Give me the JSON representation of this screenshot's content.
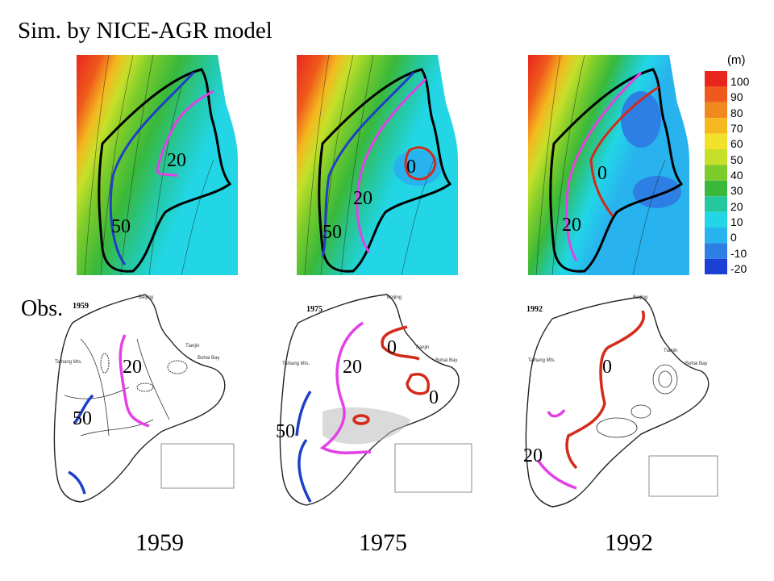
{
  "title": "Sim. by NICE-AGR model",
  "obs_label": "Obs.",
  "colorbar": {
    "unit": "(m)",
    "ticks": [
      "100",
      "90",
      "80",
      "70",
      "60",
      "50",
      "40",
      "30",
      "20",
      "10",
      "0",
      "-10",
      "-20"
    ],
    "colors": [
      "#e8261e",
      "#ef5a1c",
      "#f08a1e",
      "#f5b81f",
      "#f2e12a",
      "#c6e02a",
      "#7ccc2b",
      "#39b93a",
      "#25c79e",
      "#22d6e6",
      "#28b3ef",
      "#2d7fe3",
      "#1c40d6"
    ]
  },
  "sim_panels": [
    {
      "labels": [
        "20",
        "50"
      ]
    },
    {
      "labels": [
        "0",
        "20",
        "50"
      ]
    },
    {
      "labels": [
        "0",
        "20"
      ]
    }
  ],
  "obs_panels": [
    {
      "year_tag": "1959",
      "labels": [
        "20",
        "50"
      ],
      "place_names": [
        "Beijing",
        "Tianjin",
        "Bohai Bay",
        "Taihang Mts."
      ]
    },
    {
      "year_tag": "1975",
      "labels": [
        "0",
        "20",
        "0",
        "50"
      ],
      "place_names": [
        "Beijing",
        "Tianjin",
        "Bohai Bay",
        "Taihang Mts."
      ]
    },
    {
      "year_tag": "1992",
      "labels": [
        "0",
        "20"
      ],
      "place_names": [
        "Beijing",
        "Tianjin",
        "Bohai Bay",
        "Taihang Mts."
      ]
    }
  ],
  "years": [
    "1959",
    "1975",
    "1992"
  ],
  "line_colors": {
    "c0": "#d42a1a",
    "c20": "#e341e6",
    "c50": "#1f3fc8",
    "boundary": "#000000"
  }
}
